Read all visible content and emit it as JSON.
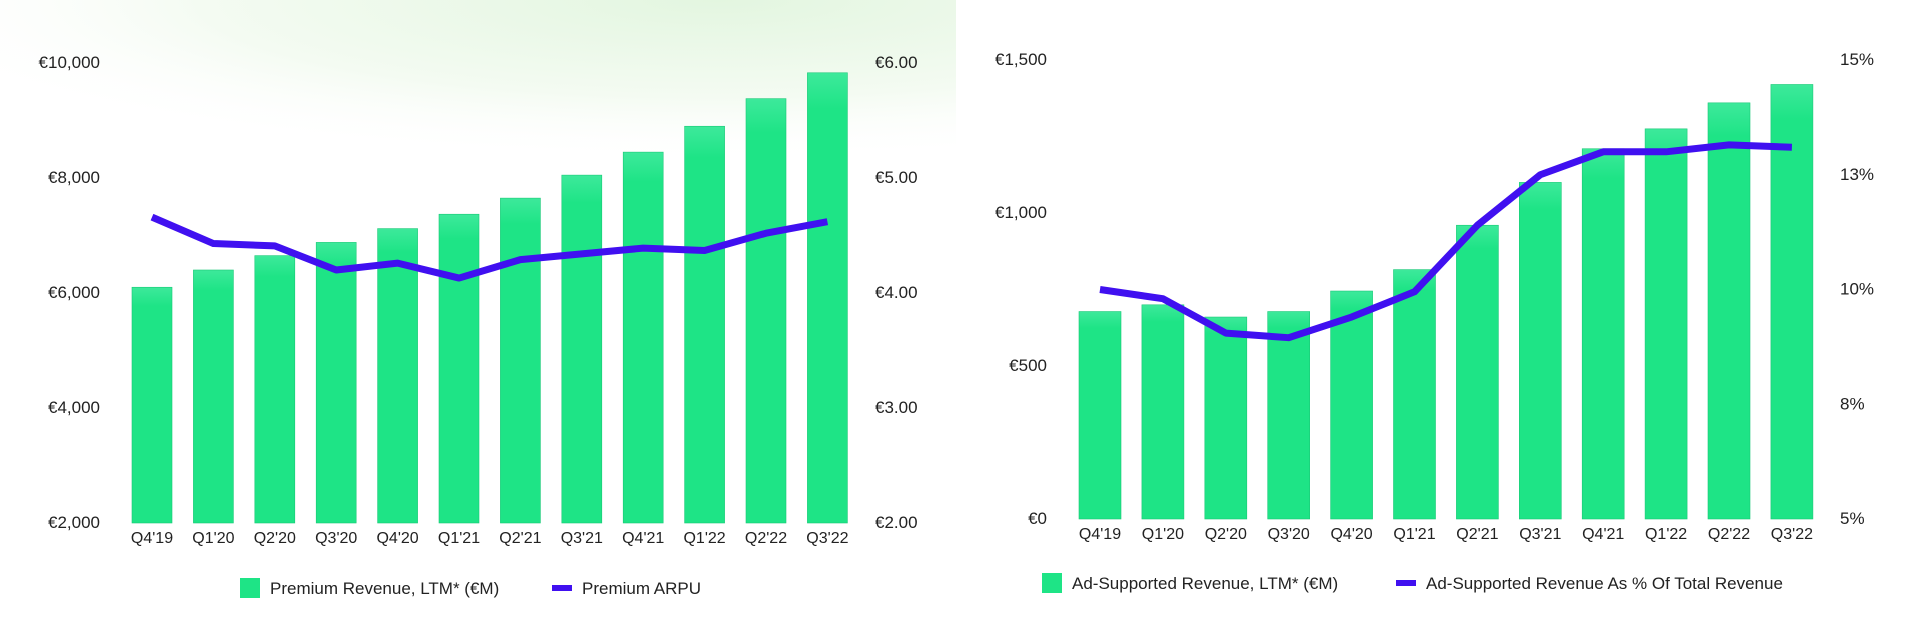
{
  "colors": {
    "bar": "#1ee486",
    "bar_highlight": "#3be89a",
    "line": "#4010f0",
    "text": "#222222",
    "glow": "#e6f7e4"
  },
  "chart_data": [
    {
      "type": "bar",
      "categories": [
        "Q4'19",
        "Q1'20",
        "Q2'20",
        "Q3'20",
        "Q4'20",
        "Q1'21",
        "Q2'21",
        "Q3'21",
        "Q4'21",
        "Q1'22",
        "Q2'22",
        "Q3'22"
      ],
      "series": [
        {
          "name": "Premium Revenue, LTM* (€M)",
          "kind": "bar",
          "axis": "left",
          "values": [
            6100,
            6400,
            6650,
            6880,
            7120,
            7370,
            7650,
            8050,
            8450,
            8900,
            9380,
            9830
          ]
        },
        {
          "name": "Premium ARPU",
          "kind": "line",
          "axis": "right",
          "values": [
            4.66,
            4.43,
            4.41,
            4.2,
            4.26,
            4.13,
            4.29,
            4.34,
            4.39,
            4.37,
            4.52,
            4.62
          ]
        }
      ],
      "ylim_left": [
        2000,
        10000
      ],
      "ylim_right": [
        2.0,
        6.0
      ],
      "left_ticks": [
        {
          "v": 2000,
          "label": "€2,000"
        },
        {
          "v": 4000,
          "label": "€4,000"
        },
        {
          "v": 6000,
          "label": "€6,000"
        },
        {
          "v": 8000,
          "label": "€8,000"
        },
        {
          "v": 10000,
          "label": "€10,000"
        }
      ],
      "right_ticks": [
        {
          "v": 2.0,
          "label": "€2.00"
        },
        {
          "v": 3.0,
          "label": "€3.00"
        },
        {
          "v": 4.0,
          "label": "€4.00"
        },
        {
          "v": 5.0,
          "label": "€5.00"
        },
        {
          "v": 6.0,
          "label": "€6.00"
        }
      ],
      "legend": [
        "Premium Revenue, LTM* (€M)",
        "Premium ARPU"
      ],
      "legend_position": "bottom",
      "title": "",
      "xlabel": "",
      "ylabel": ""
    },
    {
      "type": "bar",
      "categories": [
        "Q4'19",
        "Q1'20",
        "Q2'20",
        "Q3'20",
        "Q4'20",
        "Q1'21",
        "Q2'21",
        "Q3'21",
        "Q4'21",
        "Q1'22",
        "Q2'22",
        "Q3'22"
      ],
      "series": [
        {
          "name": "Ad-Supported Revenue, LTM* (€M)",
          "kind": "bar",
          "axis": "left",
          "values": [
            678,
            700,
            660,
            678,
            745,
            815,
            960,
            1100,
            1210,
            1275,
            1360,
            1420
          ]
        },
        {
          "name": "Ad-Supported Revenue As % Of Total Revenue",
          "kind": "line",
          "axis": "right",
          "values": [
            10.0,
            9.8,
            9.05,
            8.95,
            9.4,
            9.95,
            11.4,
            12.5,
            13.0,
            13.0,
            13.15,
            13.1
          ]
        }
      ],
      "ylim_left": [
        0,
        1500
      ],
      "ylim_right": [
        5,
        15
      ],
      "left_ticks": [
        {
          "v": 0,
          "label": "€0"
        },
        {
          "v": 500,
          "label": "€500"
        },
        {
          "v": 1000,
          "label": "€1,000"
        },
        {
          "v": 1500,
          "label": "€1,500"
        }
      ],
      "right_ticks": [
        {
          "v": 5,
          "label": "5%"
        },
        {
          "v": 7.5,
          "label": "8%"
        },
        {
          "v": 10,
          "label": "10%"
        },
        {
          "v": 12.5,
          "label": "13%"
        },
        {
          "v": 15,
          "label": "15%"
        }
      ],
      "legend": [
        "Ad-Supported Revenue, LTM* (€M)",
        "Ad-Supported Revenue As % Of Total Revenue"
      ],
      "legend_position": "bottom",
      "title": "",
      "xlabel": "",
      "ylabel": ""
    }
  ]
}
